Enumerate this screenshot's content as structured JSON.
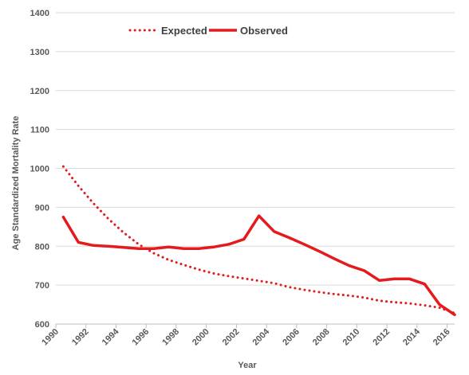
{
  "chart_data": {
    "type": "line",
    "title": "",
    "xlabel": "Year",
    "ylabel": "Age Standardized Mortality Rate",
    "xlim": [
      1990,
      2016.5
    ],
    "ylim": [
      600,
      1400
    ],
    "yticks": [
      600,
      700,
      800,
      900,
      1000,
      1100,
      1200,
      1300,
      1400
    ],
    "xticks": [
      1990,
      1992,
      1994,
      1996,
      1998,
      2000,
      2002,
      2004,
      2006,
      2008,
      2010,
      2012,
      2014,
      2016
    ],
    "grid": "horizontal",
    "legend_position": "top",
    "series": [
      {
        "name": "Expected",
        "style": "dotted",
        "color": "#e41a1c",
        "x": [
          1990.5,
          1991.5,
          1992.5,
          1993.5,
          1994.5,
          1995.5,
          1996.5,
          1997.5,
          1998.5,
          1999.5,
          2000.5,
          2001.5,
          2002.5,
          2003.5,
          2004.5,
          2005.5,
          2006.5,
          2007.5,
          2008.5,
          2009.5,
          2010.5,
          2011.5,
          2012.5,
          2013.5,
          2014.5,
          2015.5,
          2016.5
        ],
        "y": [
          1005,
          955,
          910,
          870,
          835,
          805,
          782,
          765,
          752,
          740,
          730,
          723,
          717,
          711,
          705,
          695,
          688,
          682,
          677,
          673,
          668,
          660,
          656,
          653,
          648,
          642,
          628
        ]
      },
      {
        "name": "Observed",
        "style": "solid",
        "color": "#e41a1c",
        "x": [
          1990.5,
          1991.5,
          1992.5,
          1993.5,
          1994.5,
          1995.5,
          1996.5,
          1997.5,
          1998.5,
          1999.5,
          2000.5,
          2001.5,
          2002.5,
          2003.5,
          2004.5,
          2005.5,
          2006.5,
          2007.5,
          2008.5,
          2009.5,
          2010.5,
          2011.5,
          2012.5,
          2013.5,
          2014.5,
          2015.5,
          2016.5
        ],
        "y": [
          875,
          810,
          802,
          800,
          797,
          794,
          794,
          798,
          794,
          794,
          798,
          805,
          818,
          878,
          838,
          822,
          805,
          787,
          768,
          750,
          737,
          712,
          716,
          716,
          703,
          650,
          624
        ]
      }
    ]
  }
}
